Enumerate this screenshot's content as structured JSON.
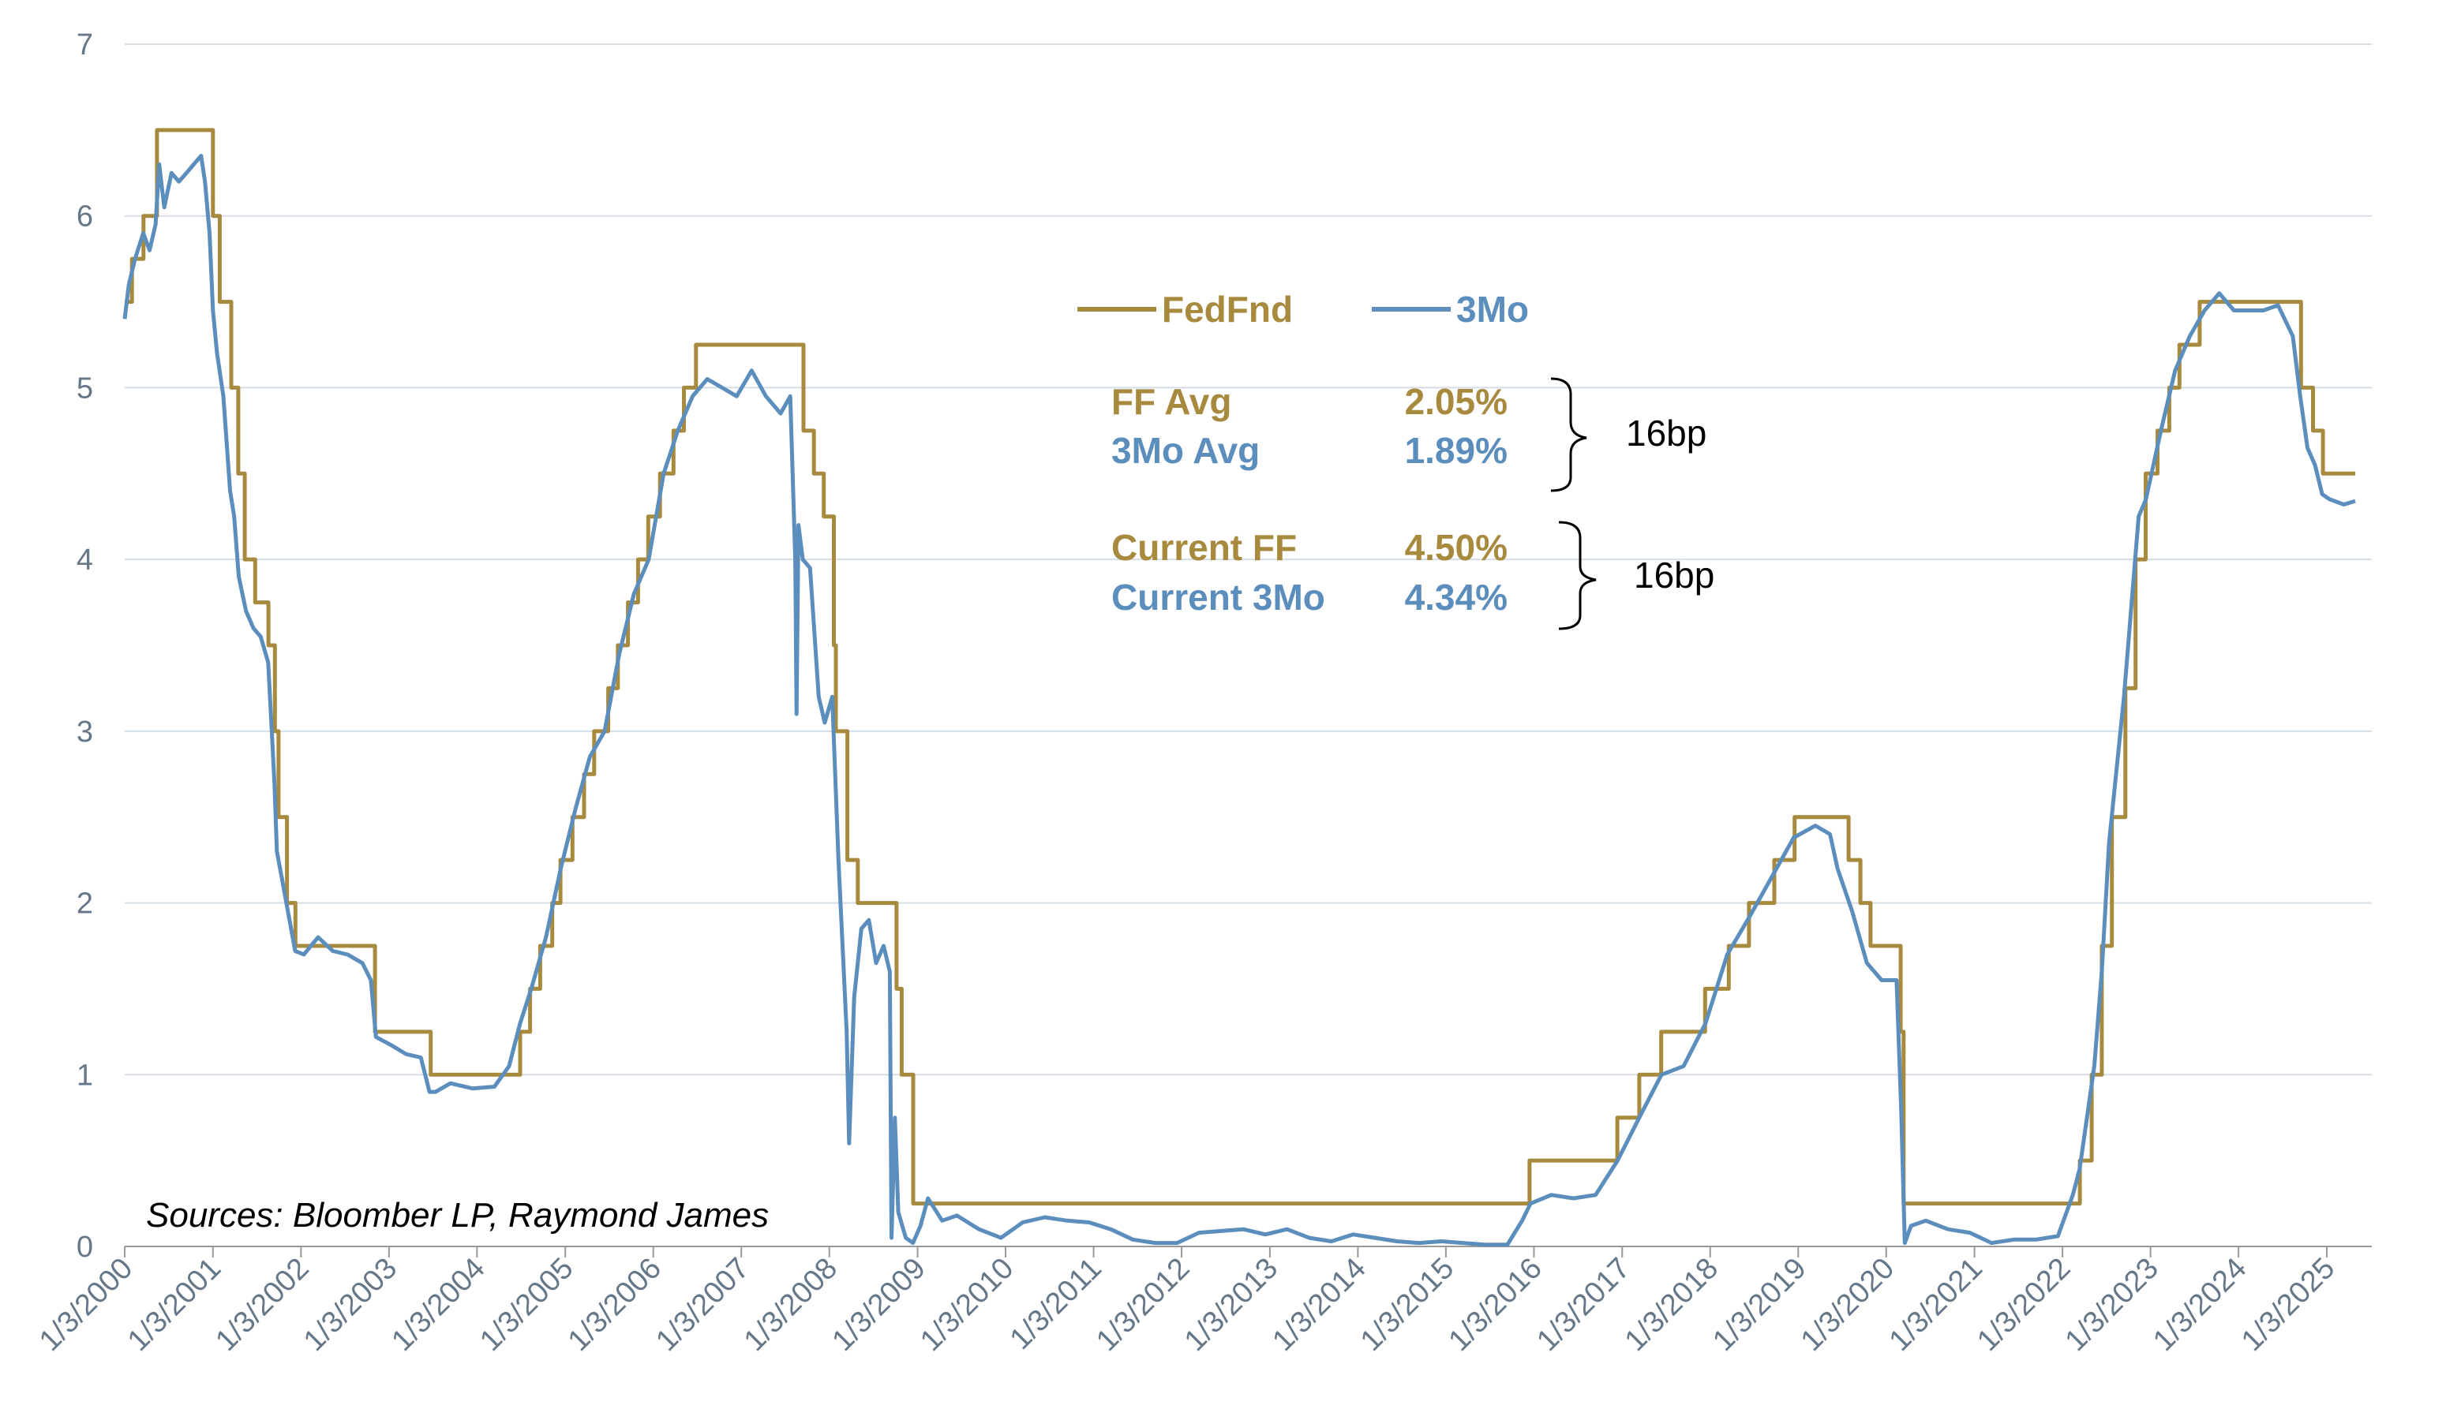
{
  "chart_data": {
    "type": "line",
    "title": "",
    "xlabel": "",
    "ylabel": "",
    "ylim": [
      0,
      7
    ],
    "yticks": [
      "0",
      "1",
      "2",
      "3",
      "4",
      "5",
      "6",
      "7"
    ],
    "xticks": [
      "1/3/2000",
      "1/3/2001",
      "1/3/2002",
      "1/3/2003",
      "1/3/2004",
      "1/3/2005",
      "1/3/2006",
      "1/3/2007",
      "1/3/2008",
      "1/3/2009",
      "1/3/2010",
      "1/3/2011",
      "1/3/2012",
      "1/3/2013",
      "1/3/2014",
      "1/3/2015",
      "1/3/2016",
      "1/3/2017",
      "1/3/2018",
      "1/3/2019",
      "1/3/2020",
      "1/3/2021",
      "1/3/2022",
      "1/3/2023",
      "1/3/2024",
      "1/3/2025"
    ],
    "grid": true,
    "legend_position": "top-center",
    "colors": {
      "fedfnd": "#a88a3f",
      "threemo": "#5b8dbd",
      "grid": "#d5dde5",
      "axis": "#999999"
    },
    "series": [
      {
        "name": "FedFnd",
        "style": "step",
        "points": [
          [
            "2000-01-03",
            5.5
          ],
          [
            "2000-02-02",
            5.75
          ],
          [
            "2000-03-21",
            6.0
          ],
          [
            "2000-05-16",
            6.5
          ],
          [
            "2001-01-03",
            6.0
          ],
          [
            "2001-01-31",
            5.5
          ],
          [
            "2001-03-20",
            5.0
          ],
          [
            "2001-04-18",
            4.5
          ],
          [
            "2001-05-15",
            4.0
          ],
          [
            "2001-06-27",
            3.75
          ],
          [
            "2001-08-21",
            3.5
          ],
          [
            "2001-09-17",
            3.0
          ],
          [
            "2001-10-02",
            2.5
          ],
          [
            "2001-11-06",
            2.0
          ],
          [
            "2001-12-11",
            1.75
          ],
          [
            "2002-11-06",
            1.25
          ],
          [
            "2003-06-25",
            1.0
          ],
          [
            "2004-06-30",
            1.25
          ],
          [
            "2004-08-10",
            1.5
          ],
          [
            "2004-09-21",
            1.75
          ],
          [
            "2004-11-10",
            2.0
          ],
          [
            "2004-12-14",
            2.25
          ],
          [
            "2005-02-02",
            2.5
          ],
          [
            "2005-03-22",
            2.75
          ],
          [
            "2005-05-03",
            3.0
          ],
          [
            "2005-06-30",
            3.25
          ],
          [
            "2005-08-09",
            3.5
          ],
          [
            "2005-09-20",
            3.75
          ],
          [
            "2005-11-01",
            4.0
          ],
          [
            "2005-12-13",
            4.25
          ],
          [
            "2006-01-31",
            4.5
          ],
          [
            "2006-03-28",
            4.75
          ],
          [
            "2006-05-10",
            5.0
          ],
          [
            "2006-06-29",
            5.25
          ],
          [
            "2007-09-18",
            4.75
          ],
          [
            "2007-10-31",
            4.5
          ],
          [
            "2007-12-11",
            4.25
          ],
          [
            "2008-01-22",
            3.5
          ],
          [
            "2008-01-30",
            3.0
          ],
          [
            "2008-03-18",
            2.25
          ],
          [
            "2008-04-30",
            2.0
          ],
          [
            "2008-10-08",
            1.5
          ],
          [
            "2008-10-29",
            1.0
          ],
          [
            "2008-12-16",
            0.25
          ],
          [
            "2015-12-16",
            0.5
          ],
          [
            "2016-12-14",
            0.75
          ],
          [
            "2017-03-15",
            1.0
          ],
          [
            "2017-06-14",
            1.25
          ],
          [
            "2017-12-13",
            1.5
          ],
          [
            "2018-03-21",
            1.75
          ],
          [
            "2018-06-13",
            2.0
          ],
          [
            "2018-09-26",
            2.25
          ],
          [
            "2018-12-19",
            2.5
          ],
          [
            "2019-07-31",
            2.25
          ],
          [
            "2019-09-18",
            2.0
          ],
          [
            "2019-10-30",
            1.75
          ],
          [
            "2020-03-03",
            1.25
          ],
          [
            "2020-03-15",
            0.25
          ],
          [
            "2022-03-16",
            0.5
          ],
          [
            "2022-05-04",
            1.0
          ],
          [
            "2022-06-15",
            1.75
          ],
          [
            "2022-07-27",
            2.5
          ],
          [
            "2022-09-21",
            3.25
          ],
          [
            "2022-11-02",
            4.0
          ],
          [
            "2022-12-14",
            4.5
          ],
          [
            "2023-02-01",
            4.75
          ],
          [
            "2023-03-22",
            5.0
          ],
          [
            "2023-05-03",
            5.25
          ],
          [
            "2023-07-26",
            5.5
          ],
          [
            "2024-09-18",
            5.0
          ],
          [
            "2024-11-07",
            4.75
          ],
          [
            "2024-12-18",
            4.5
          ],
          [
            "2025-05-01",
            4.5
          ]
        ]
      },
      {
        "name": "3Mo",
        "style": "line",
        "points": [
          [
            "2000-01-03",
            5.4
          ],
          [
            "2000-01-20",
            5.6
          ],
          [
            "2000-02-15",
            5.75
          ],
          [
            "2000-03-20",
            5.9
          ],
          [
            "2000-04-15",
            5.8
          ],
          [
            "2000-05-10",
            5.95
          ],
          [
            "2000-05-25",
            6.3
          ],
          [
            "2000-06-15",
            6.05
          ],
          [
            "2000-07-15",
            6.25
          ],
          [
            "2000-08-15",
            6.2
          ],
          [
            "2000-09-15",
            6.25
          ],
          [
            "2000-10-15",
            6.3
          ],
          [
            "2000-11-15",
            6.35
          ],
          [
            "2000-12-01",
            6.2
          ],
          [
            "2000-12-20",
            5.9
          ],
          [
            "2001-01-03",
            5.45
          ],
          [
            "2001-01-20",
            5.2
          ],
          [
            "2001-02-15",
            4.95
          ],
          [
            "2001-03-15",
            4.4
          ],
          [
            "2001-04-01",
            4.25
          ],
          [
            "2001-04-20",
            3.9
          ],
          [
            "2001-05-20",
            3.7
          ],
          [
            "2001-06-20",
            3.6
          ],
          [
            "2001-07-20",
            3.55
          ],
          [
            "2001-08-20",
            3.4
          ],
          [
            "2001-09-15",
            2.7
          ],
          [
            "2001-09-25",
            2.3
          ],
          [
            "2001-10-15",
            2.15
          ],
          [
            "2001-11-10",
            1.95
          ],
          [
            "2001-12-10",
            1.72
          ],
          [
            "2002-01-15",
            1.7
          ],
          [
            "2002-03-15",
            1.8
          ],
          [
            "2002-05-15",
            1.72
          ],
          [
            "2002-07-15",
            1.7
          ],
          [
            "2002-09-15",
            1.65
          ],
          [
            "2002-10-20",
            1.55
          ],
          [
            "2002-11-10",
            1.22
          ],
          [
            "2003-01-15",
            1.17
          ],
          [
            "2003-03-15",
            1.12
          ],
          [
            "2003-05-15",
            1.1
          ],
          [
            "2003-06-20",
            0.9
          ],
          [
            "2003-07-15",
            0.9
          ],
          [
            "2003-09-15",
            0.95
          ],
          [
            "2003-12-15",
            0.92
          ],
          [
            "2004-03-15",
            0.93
          ],
          [
            "2004-05-15",
            1.05
          ],
          [
            "2004-06-30",
            1.3
          ],
          [
            "2004-08-15",
            1.5
          ],
          [
            "2004-10-15",
            1.8
          ],
          [
            "2004-12-15",
            2.2
          ],
          [
            "2005-02-15",
            2.55
          ],
          [
            "2005-04-15",
            2.85
          ],
          [
            "2005-06-15",
            3.0
          ],
          [
            "2005-08-15",
            3.45
          ],
          [
            "2005-10-15",
            3.8
          ],
          [
            "2005-12-15",
            4.0
          ],
          [
            "2006-02-15",
            4.5
          ],
          [
            "2006-04-15",
            4.75
          ],
          [
            "2006-06-15",
            4.95
          ],
          [
            "2006-08-15",
            5.05
          ],
          [
            "2006-10-15",
            5.0
          ],
          [
            "2006-12-15",
            4.95
          ],
          [
            "2007-02-15",
            5.1
          ],
          [
            "2007-04-15",
            4.95
          ],
          [
            "2007-06-15",
            4.85
          ],
          [
            "2007-07-25",
            4.95
          ],
          [
            "2007-08-15",
            4.0
          ],
          [
            "2007-08-20",
            3.1
          ],
          [
            "2007-08-28",
            4.2
          ],
          [
            "2007-09-15",
            4.0
          ],
          [
            "2007-10-15",
            3.95
          ],
          [
            "2007-11-20",
            3.2
          ],
          [
            "2007-12-15",
            3.05
          ],
          [
            "2008-01-15",
            3.2
          ],
          [
            "2008-02-10",
            2.25
          ],
          [
            "2008-03-15",
            1.25
          ],
          [
            "2008-03-25",
            0.6
          ],
          [
            "2008-04-15",
            1.45
          ],
          [
            "2008-05-15",
            1.85
          ],
          [
            "2008-06-15",
            1.9
          ],
          [
            "2008-07-15",
            1.65
          ],
          [
            "2008-08-15",
            1.75
          ],
          [
            "2008-09-10",
            1.6
          ],
          [
            "2008-09-17",
            0.05
          ],
          [
            "2008-10-01",
            0.75
          ],
          [
            "2008-10-15",
            0.2
          ],
          [
            "2008-11-15",
            0.05
          ],
          [
            "2008-12-15",
            0.02
          ],
          [
            "2009-01-15",
            0.12
          ],
          [
            "2009-02-15",
            0.28
          ],
          [
            "2009-04-15",
            0.15
          ],
          [
            "2009-06-15",
            0.18
          ],
          [
            "2009-09-15",
            0.1
          ],
          [
            "2009-12-15",
            0.05
          ],
          [
            "2010-03-15",
            0.14
          ],
          [
            "2010-06-15",
            0.17
          ],
          [
            "2010-09-15",
            0.15
          ],
          [
            "2010-12-15",
            0.14
          ],
          [
            "2011-03-15",
            0.1
          ],
          [
            "2011-06-15",
            0.04
          ],
          [
            "2011-09-15",
            0.02
          ],
          [
            "2011-12-15",
            0.02
          ],
          [
            "2012-03-15",
            0.08
          ],
          [
            "2012-06-15",
            0.09
          ],
          [
            "2012-09-15",
            0.1
          ],
          [
            "2012-12-15",
            0.07
          ],
          [
            "2013-03-15",
            0.1
          ],
          [
            "2013-06-15",
            0.05
          ],
          [
            "2013-09-15",
            0.03
          ],
          [
            "2013-12-15",
            0.07
          ],
          [
            "2014-03-15",
            0.05
          ],
          [
            "2014-06-15",
            0.03
          ],
          [
            "2014-09-15",
            0.02
          ],
          [
            "2014-12-15",
            0.03
          ],
          [
            "2015-03-15",
            0.02
          ],
          [
            "2015-06-15",
            0.01
          ],
          [
            "2015-09-15",
            0.01
          ],
          [
            "2015-11-15",
            0.15
          ],
          [
            "2015-12-20",
            0.25
          ],
          [
            "2016-03-15",
            0.3
          ],
          [
            "2016-06-15",
            0.28
          ],
          [
            "2016-09-15",
            0.3
          ],
          [
            "2016-12-15",
            0.5
          ],
          [
            "2017-03-15",
            0.75
          ],
          [
            "2017-06-15",
            1.0
          ],
          [
            "2017-09-15",
            1.05
          ],
          [
            "2017-12-15",
            1.3
          ],
          [
            "2018-03-15",
            1.7
          ],
          [
            "2018-06-15",
            1.92
          ],
          [
            "2018-09-15",
            2.15
          ],
          [
            "2018-12-15",
            2.38
          ],
          [
            "2019-03-15",
            2.45
          ],
          [
            "2019-05-15",
            2.4
          ],
          [
            "2019-06-15",
            2.2
          ],
          [
            "2019-08-15",
            1.95
          ],
          [
            "2019-10-15",
            1.65
          ],
          [
            "2019-12-15",
            1.55
          ],
          [
            "2020-02-15",
            1.55
          ],
          [
            "2020-03-05",
            0.8
          ],
          [
            "2020-03-20",
            0.02
          ],
          [
            "2020-04-15",
            0.12
          ],
          [
            "2020-06-15",
            0.15
          ],
          [
            "2020-09-15",
            0.1
          ],
          [
            "2020-12-15",
            0.08
          ],
          [
            "2021-03-15",
            0.02
          ],
          [
            "2021-06-15",
            0.04
          ],
          [
            "2021-09-15",
            0.04
          ],
          [
            "2021-12-15",
            0.06
          ],
          [
            "2022-02-15",
            0.3
          ],
          [
            "2022-03-15",
            0.45
          ],
          [
            "2022-05-15",
            1.05
          ],
          [
            "2022-06-15",
            1.6
          ],
          [
            "2022-07-15",
            2.35
          ],
          [
            "2022-09-15",
            3.2
          ],
          [
            "2022-11-15",
            4.25
          ],
          [
            "2022-12-15",
            4.35
          ],
          [
            "2023-02-15",
            4.75
          ],
          [
            "2023-04-15",
            5.1
          ],
          [
            "2023-06-15",
            5.3
          ],
          [
            "2023-08-15",
            5.45
          ],
          [
            "2023-10-15",
            5.55
          ],
          [
            "2023-12-15",
            5.45
          ],
          [
            "2024-02-15",
            5.45
          ],
          [
            "2024-04-15",
            5.45
          ],
          [
            "2024-06-15",
            5.48
          ],
          [
            "2024-08-15",
            5.3
          ],
          [
            "2024-09-15",
            4.95
          ],
          [
            "2024-10-15",
            4.65
          ],
          [
            "2024-11-15",
            4.55
          ],
          [
            "2024-12-15",
            4.38
          ],
          [
            "2025-01-15",
            4.35
          ],
          [
            "2025-03-15",
            4.32
          ],
          [
            "2025-05-01",
            4.34
          ]
        ]
      }
    ],
    "annotations": {
      "legend": [
        {
          "label": "FedFnd",
          "color": "#a88a3f"
        },
        {
          "label": "3Mo",
          "color": "#5b8dbd"
        }
      ],
      "avg": {
        "ff_label": "FF Avg",
        "ff_value": "2.05%",
        "mo_label": "3Mo Avg",
        "mo_value": "1.89%",
        "diff": "16bp"
      },
      "current": {
        "ff_label": "Current FF",
        "ff_value": "4.50%",
        "mo_label": "Current 3Mo",
        "mo_value": "4.34%",
        "diff": "16bp"
      },
      "source": "Sources: Bloomber LP, Raymond James"
    }
  }
}
